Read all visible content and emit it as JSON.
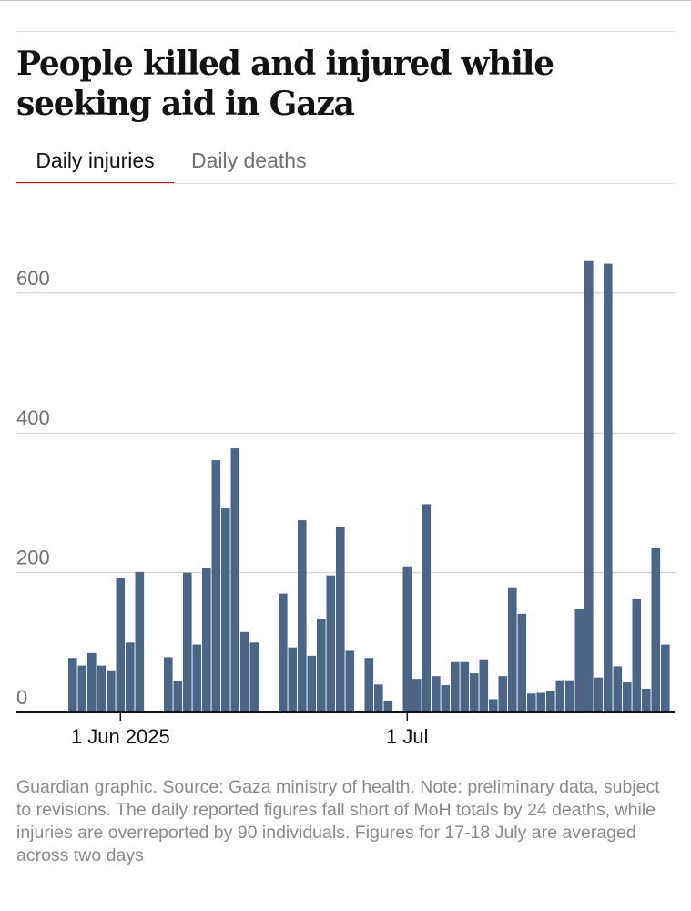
{
  "title": "People killed and injured while seeking aid in Gaza",
  "tabs": [
    {
      "label": "Daily injuries",
      "active": true
    },
    {
      "label": "Daily deaths",
      "active": false
    }
  ],
  "colors": {
    "bar": "#4a6585",
    "grid": "#cccccc",
    "axis": "#121212",
    "tab_accent": "#c70000",
    "text_muted": "#707070"
  },
  "chart_data": {
    "type": "bar",
    "title": "",
    "xlabel": "",
    "ylabel": "",
    "ylim": [
      0,
      650
    ],
    "yticks": [
      0,
      200,
      400,
      600
    ],
    "grid": true,
    "xticks": [
      {
        "label": "1 Jun 2025",
        "date": "2025-06-01"
      },
      {
        "label": "1 Jul",
        "date": "2025-07-01"
      }
    ],
    "series": [
      {
        "values": [
          {
            "date": "2025-05-27",
            "value": 78
          },
          {
            "date": "2025-05-28",
            "value": 67
          },
          {
            "date": "2025-05-29",
            "value": 85
          },
          {
            "date": "2025-05-30",
            "value": 67
          },
          {
            "date": "2025-05-31",
            "value": 59
          },
          {
            "date": "2025-06-01",
            "value": 192
          },
          {
            "date": "2025-06-02",
            "value": 100
          },
          {
            "date": "2025-06-03",
            "value": 201
          },
          {
            "date": "2025-06-06",
            "value": 79
          },
          {
            "date": "2025-06-07",
            "value": 45
          },
          {
            "date": "2025-06-08",
            "value": 200
          },
          {
            "date": "2025-06-09",
            "value": 97
          },
          {
            "date": "2025-06-10",
            "value": 207
          },
          {
            "date": "2025-06-11",
            "value": 361
          },
          {
            "date": "2025-06-12",
            "value": 292
          },
          {
            "date": "2025-06-13",
            "value": 378
          },
          {
            "date": "2025-06-14",
            "value": 115
          },
          {
            "date": "2025-06-15",
            "value": 100
          },
          {
            "date": "2025-06-18",
            "value": 170
          },
          {
            "date": "2025-06-19",
            "value": 93
          },
          {
            "date": "2025-06-20",
            "value": 275
          },
          {
            "date": "2025-06-21",
            "value": 81
          },
          {
            "date": "2025-06-22",
            "value": 134
          },
          {
            "date": "2025-06-23",
            "value": 196
          },
          {
            "date": "2025-06-24",
            "value": 266
          },
          {
            "date": "2025-06-25",
            "value": 88
          },
          {
            "date": "2025-06-27",
            "value": 78
          },
          {
            "date": "2025-06-28",
            "value": 40
          },
          {
            "date": "2025-06-29",
            "value": 17
          },
          {
            "date": "2025-07-01",
            "value": 209
          },
          {
            "date": "2025-07-02",
            "value": 48
          },
          {
            "date": "2025-07-03",
            "value": 298
          },
          {
            "date": "2025-07-04",
            "value": 52
          },
          {
            "date": "2025-07-05",
            "value": 39
          },
          {
            "date": "2025-07-06",
            "value": 72
          },
          {
            "date": "2025-07-07",
            "value": 72
          },
          {
            "date": "2025-07-08",
            "value": 56
          },
          {
            "date": "2025-07-09",
            "value": 76
          },
          {
            "date": "2025-07-10",
            "value": 19
          },
          {
            "date": "2025-07-11",
            "value": 52
          },
          {
            "date": "2025-07-12",
            "value": 179
          },
          {
            "date": "2025-07-13",
            "value": 141
          },
          {
            "date": "2025-07-14",
            "value": 27
          },
          {
            "date": "2025-07-15",
            "value": 28
          },
          {
            "date": "2025-07-16",
            "value": 30
          },
          {
            "date": "2025-07-17",
            "value": 46
          },
          {
            "date": "2025-07-18",
            "value": 46
          },
          {
            "date": "2025-07-19",
            "value": 148
          },
          {
            "date": "2025-07-20",
            "value": 647
          },
          {
            "date": "2025-07-21",
            "value": 50
          },
          {
            "date": "2025-07-22",
            "value": 642
          },
          {
            "date": "2025-07-23",
            "value": 66
          },
          {
            "date": "2025-07-24",
            "value": 43
          },
          {
            "date": "2025-07-25",
            "value": 163
          },
          {
            "date": "2025-07-26",
            "value": 34
          },
          {
            "date": "2025-07-27",
            "value": 236
          },
          {
            "date": "2025-07-28",
            "value": 97
          }
        ]
      }
    ]
  },
  "footnote": "Guardian graphic. Source: Gaza ministry of health. Note: preliminary data, subject to revisions. The daily reported figures fall short of MoH totals by 24 deaths, while injuries are overreported by 90 individuals. Figures for 17-18 July are averaged across two days"
}
